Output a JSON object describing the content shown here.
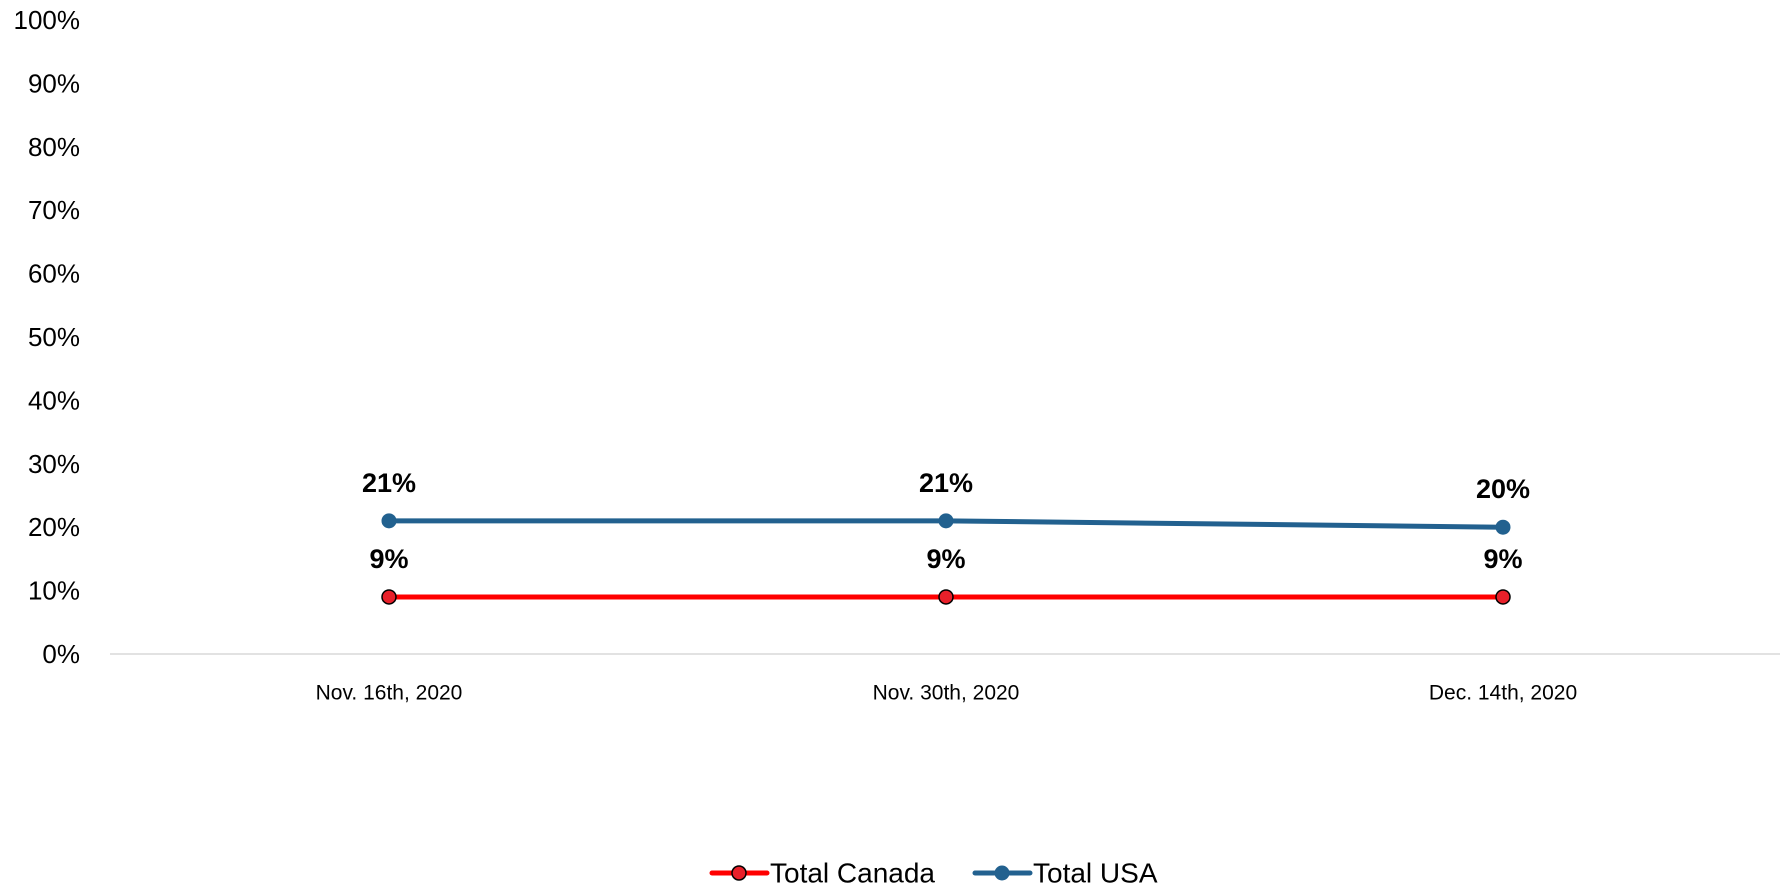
{
  "chart_data": {
    "type": "line",
    "title": "",
    "xlabel": "",
    "ylabel": "",
    "categories": [
      "Nov. 16th, 2020",
      "Nov. 30th, 2020",
      "Dec. 14th, 2020"
    ],
    "ylim": [
      0,
      100
    ],
    "yticks": [
      0,
      10,
      20,
      30,
      40,
      50,
      60,
      70,
      80,
      90,
      100
    ],
    "ytick_labels": [
      "0%",
      "10%",
      "20%",
      "30%",
      "40%",
      "50%",
      "60%",
      "70%",
      "80%",
      "90%",
      "100%"
    ],
    "y_unit": "%",
    "grid": false,
    "legend_position": "bottom",
    "series": [
      {
        "name": "Total Canada",
        "values": [
          9,
          9,
          9
        ],
        "labels": [
          "9%",
          "9%",
          "9%"
        ],
        "color": "#ff0000",
        "marker_fill": "#e8202a"
      },
      {
        "name": "Total USA",
        "values": [
          21,
          21,
          20
        ],
        "labels": [
          "21%",
          "21%",
          "20%"
        ],
        "color": "#22618f",
        "marker_fill": "#22618f"
      }
    ]
  }
}
